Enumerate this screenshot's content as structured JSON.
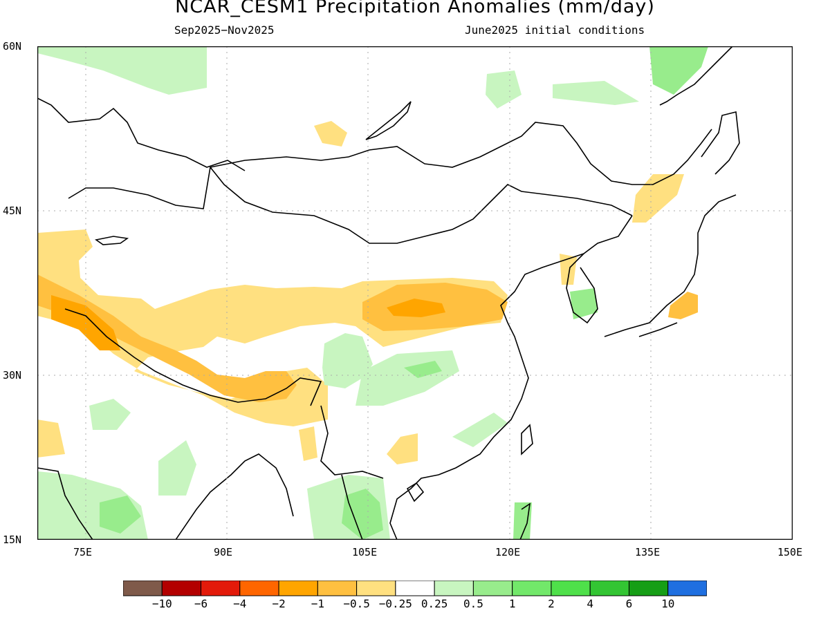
{
  "title": "NCAR_CESM1 Precipitation Anomalies (mm/day)",
  "period": "Sep2025−Nov2025",
  "init": "June2025 initial conditions",
  "lat_labels": [
    "60N",
    "45N",
    "30N",
    "15N"
  ],
  "lon_labels": [
    "75E",
    "90E",
    "105E",
    "120E",
    "135E",
    "150E"
  ],
  "colorbar": {
    "colors": [
      "#7f5a4a",
      "#b30000",
      "#e31a0a",
      "#ff6600",
      "#ffa500",
      "#ffc040",
      "#ffe080",
      "#ffffff",
      "#c8f5c0",
      "#98ec8c",
      "#72e86a",
      "#4fe04a",
      "#33c533",
      "#169e16",
      "#1f6fe0"
    ],
    "labels": [
      "−10",
      "−6",
      "−4",
      "−2",
      "−1",
      "−0.5",
      "−0.25",
      "0.25",
      "0.5",
      "1",
      "2",
      "4",
      "6",
      "10"
    ]
  }
}
